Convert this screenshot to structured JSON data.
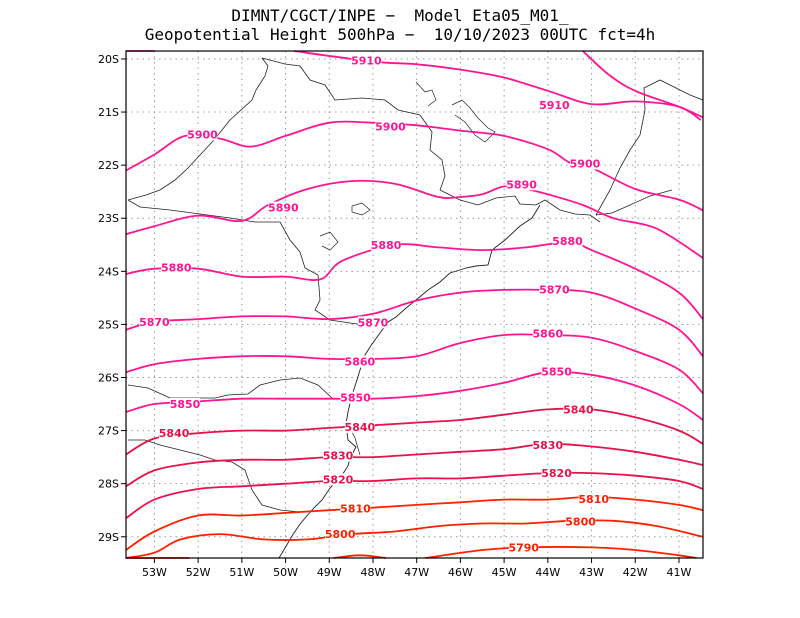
{
  "title": {
    "line1": "DIMNT/CGCT/INPE −  Model Eta05_M01_",
    "line2": "Geopotential Height 500hPa −  10/10/2023 00UTC fct=4h"
  },
  "chart_data": {
    "type": "contour",
    "variable": "Geopotential Height 500hPa",
    "x_ticks": [
      "53W",
      "52W",
      "51W",
      "50W",
      "49W",
      "48W",
      "47W",
      "46W",
      "45W",
      "44W",
      "43W",
      "42W",
      "41W"
    ],
    "y_ticks": [
      "20S",
      "21S",
      "22S",
      "23S",
      "24S",
      "25S",
      "26S",
      "27S",
      "28S",
      "29S"
    ],
    "xlim": [
      -53.65,
      -40.45
    ],
    "ylim": [
      -29.4,
      -19.85
    ],
    "grid": true,
    "contours": [
      {
        "level": 5910,
        "color": "#ff1493",
        "points": [
          [
            -49.8,
            -19.85
          ],
          [
            -48.0,
            -20.05
          ],
          [
            -47.0,
            -20.1
          ],
          [
            -46.0,
            -20.2
          ],
          [
            -45.0,
            -20.35
          ],
          [
            -44.0,
            -20.6
          ],
          [
            -43.0,
            -20.85
          ],
          [
            -42.0,
            -20.8
          ],
          [
            -41.0,
            -20.9
          ],
          [
            -40.5,
            -21.15
          ]
        ],
        "labels": [
          {
            "text": "5910",
            "x": -48.15,
            "y": -20.03
          },
          {
            "text": "5910",
            "x": -43.85,
            "y": -20.87
          }
        ]
      },
      {
        "level": 5910,
        "color": "#ff1493",
        "points": [
          [
            -53.65,
            -19.85
          ],
          [
            -53.0,
            -19.85
          ]
        ],
        "labels": []
      },
      {
        "level": 5910,
        "color": "#ff1493",
        "points": [
          [
            -43.2,
            -19.85
          ],
          [
            -42.6,
            -20.3
          ],
          [
            -42.0,
            -20.6
          ],
          [
            -41.0,
            -20.9
          ],
          [
            -40.45,
            -21.1
          ]
        ],
        "labels": []
      },
      {
        "level": 5900,
        "color": "#ff1493",
        "points": [
          [
            -53.65,
            -22.1
          ],
          [
            -53.0,
            -21.8
          ],
          [
            -52.3,
            -21.45
          ],
          [
            -51.5,
            -21.5
          ],
          [
            -50.8,
            -21.65
          ],
          [
            -50.0,
            -21.45
          ],
          [
            -49.0,
            -21.2
          ],
          [
            -48.0,
            -21.2
          ],
          [
            -47.0,
            -21.25
          ],
          [
            -46.0,
            -21.35
          ],
          [
            -45.0,
            -21.45
          ],
          [
            -44.0,
            -21.7
          ],
          [
            -43.5,
            -21.95
          ],
          [
            -43.0,
            -22.05
          ],
          [
            -42.0,
            -22.45
          ],
          [
            -41.0,
            -22.65
          ],
          [
            -40.45,
            -22.85
          ]
        ],
        "labels": [
          {
            "text": "5900",
            "x": -51.9,
            "y": -21.42
          },
          {
            "text": "5900",
            "x": -47.6,
            "y": -21.27
          },
          {
            "text": "5900",
            "x": -43.15,
            "y": -21.97
          }
        ]
      },
      {
        "level": 5890,
        "color": "#ff1493",
        "points": [
          [
            -53.65,
            -23.3
          ],
          [
            -53.0,
            -23.15
          ],
          [
            -52.0,
            -22.95
          ],
          [
            -51.0,
            -23.05
          ],
          [
            -50.4,
            -22.75
          ],
          [
            -49.5,
            -22.45
          ],
          [
            -48.5,
            -22.3
          ],
          [
            -47.5,
            -22.35
          ],
          [
            -46.5,
            -22.6
          ],
          [
            -46.0,
            -22.6
          ],
          [
            -45.5,
            -22.55
          ],
          [
            -45.0,
            -22.4
          ],
          [
            -44.5,
            -22.45
          ],
          [
            -44.0,
            -22.55
          ],
          [
            -43.2,
            -22.75
          ],
          [
            -42.5,
            -23.0
          ],
          [
            -41.5,
            -23.2
          ],
          [
            -40.45,
            -23.75
          ]
        ],
        "labels": [
          {
            "text": "5890",
            "x": -50.05,
            "y": -22.8
          },
          {
            "text": "5890",
            "x": -44.6,
            "y": -22.36
          }
        ]
      },
      {
        "level": 5880,
        "color": "#ff1493",
        "points": [
          [
            -53.65,
            -24.05
          ],
          [
            -53.0,
            -23.95
          ],
          [
            -52.0,
            -23.95
          ],
          [
            -51.0,
            -24.1
          ],
          [
            -50.0,
            -24.1
          ],
          [
            -49.2,
            -24.15
          ],
          [
            -48.7,
            -23.8
          ],
          [
            -47.5,
            -23.5
          ],
          [
            -46.5,
            -23.55
          ],
          [
            -45.5,
            -23.6
          ],
          [
            -44.5,
            -23.55
          ],
          [
            -43.5,
            -23.45
          ],
          [
            -43.0,
            -23.6
          ],
          [
            -42.0,
            -23.95
          ],
          [
            -41.0,
            -24.4
          ],
          [
            -40.45,
            -24.9
          ]
        ],
        "labels": [
          {
            "text": "5880",
            "x": -52.5,
            "y": -23.93
          },
          {
            "text": "5880",
            "x": -47.7,
            "y": -23.5
          },
          {
            "text": "5880",
            "x": -43.55,
            "y": -23.43
          }
        ]
      },
      {
        "level": 5870,
        "color": "#ff1493",
        "points": [
          [
            -53.65,
            -25.1
          ],
          [
            -53.0,
            -24.95
          ],
          [
            -52.0,
            -24.9
          ],
          [
            -51.0,
            -24.85
          ],
          [
            -50.0,
            -24.85
          ],
          [
            -49.0,
            -24.9
          ],
          [
            -48.0,
            -24.8
          ],
          [
            -47.0,
            -24.55
          ],
          [
            -46.0,
            -24.4
          ],
          [
            -45.0,
            -24.35
          ],
          [
            -44.0,
            -24.35
          ],
          [
            -43.0,
            -24.4
          ],
          [
            -42.0,
            -24.7
          ],
          [
            -41.0,
            -25.1
          ],
          [
            -40.45,
            -25.6
          ]
        ],
        "labels": [
          {
            "text": "5870",
            "x": -53.0,
            "y": -24.95
          },
          {
            "text": "5870",
            "x": -48.0,
            "y": -24.96
          },
          {
            "text": "5870",
            "x": -43.85,
            "y": -24.34
          }
        ]
      },
      {
        "level": 5860,
        "color": "#ff1493",
        "points": [
          [
            -53.65,
            -25.9
          ],
          [
            -53.0,
            -25.75
          ],
          [
            -52.0,
            -25.65
          ],
          [
            -51.0,
            -25.6
          ],
          [
            -50.0,
            -25.6
          ],
          [
            -49.0,
            -25.65
          ],
          [
            -48.0,
            -25.65
          ],
          [
            -47.0,
            -25.6
          ],
          [
            -46.0,
            -25.35
          ],
          [
            -45.0,
            -25.2
          ],
          [
            -44.0,
            -25.2
          ],
          [
            -43.0,
            -25.25
          ],
          [
            -42.0,
            -25.5
          ],
          [
            -41.0,
            -25.85
          ],
          [
            -40.45,
            -26.3
          ]
        ],
        "labels": [
          {
            "text": "5860",
            "x": -48.3,
            "y": -25.7
          },
          {
            "text": "5860",
            "x": -44.0,
            "y": -25.17
          }
        ]
      },
      {
        "level": 5850,
        "color": "#ff1493",
        "points": [
          [
            -53.65,
            -26.65
          ],
          [
            -53.0,
            -26.5
          ],
          [
            -52.0,
            -26.45
          ],
          [
            -51.0,
            -26.4
          ],
          [
            -50.0,
            -26.4
          ],
          [
            -49.0,
            -26.4
          ],
          [
            -48.0,
            -26.4
          ],
          [
            -47.0,
            -26.35
          ],
          [
            -46.0,
            -26.25
          ],
          [
            -45.0,
            -26.1
          ],
          [
            -44.0,
            -25.9
          ],
          [
            -43.0,
            -25.95
          ],
          [
            -42.0,
            -26.15
          ],
          [
            -41.0,
            -26.5
          ],
          [
            -40.45,
            -26.8
          ]
        ],
        "labels": [
          {
            "text": "5850",
            "x": -52.3,
            "y": -26.5
          },
          {
            "text": "5850",
            "x": -48.4,
            "y": -26.38
          },
          {
            "text": "5850",
            "x": -43.8,
            "y": -25.89
          }
        ]
      },
      {
        "level": 5840,
        "color": "#e8114a",
        "points": [
          [
            -53.65,
            -27.45
          ],
          [
            -53.0,
            -27.15
          ],
          [
            -52.0,
            -27.05
          ],
          [
            -51.0,
            -27.0
          ],
          [
            -50.0,
            -27.0
          ],
          [
            -49.0,
            -26.95
          ],
          [
            -48.0,
            -26.9
          ],
          [
            -47.0,
            -26.85
          ],
          [
            -46.0,
            -26.8
          ],
          [
            -45.0,
            -26.7
          ],
          [
            -44.0,
            -26.6
          ],
          [
            -43.0,
            -26.6
          ],
          [
            -42.0,
            -26.75
          ],
          [
            -41.0,
            -27.0
          ],
          [
            -40.45,
            -27.25
          ]
        ],
        "labels": [
          {
            "text": "5840",
            "x": -52.55,
            "y": -27.05
          },
          {
            "text": "5840",
            "x": -48.3,
            "y": -26.93
          },
          {
            "text": "5840",
            "x": -43.3,
            "y": -26.6
          }
        ]
      },
      {
        "level": 5830,
        "color": "#e8114a",
        "points": [
          [
            -53.65,
            -28.05
          ],
          [
            -53.0,
            -27.75
          ],
          [
            -52.0,
            -27.6
          ],
          [
            -51.0,
            -27.55
          ],
          [
            -50.0,
            -27.55
          ],
          [
            -49.0,
            -27.5
          ],
          [
            -48.0,
            -27.5
          ],
          [
            -47.0,
            -27.45
          ],
          [
            -46.0,
            -27.4
          ],
          [
            -45.0,
            -27.35
          ],
          [
            -44.0,
            -27.25
          ],
          [
            -43.0,
            -27.3
          ],
          [
            -42.0,
            -27.4
          ],
          [
            -41.0,
            -27.55
          ],
          [
            -40.45,
            -27.65
          ]
        ],
        "labels": [
          {
            "text": "5830",
            "x": -48.8,
            "y": -27.47
          },
          {
            "text": "5830",
            "x": -44.0,
            "y": -27.27
          }
        ]
      },
      {
        "level": 5820,
        "color": "#e8114a",
        "points": [
          [
            -53.65,
            -28.65
          ],
          [
            -53.0,
            -28.3
          ],
          [
            -52.0,
            -28.1
          ],
          [
            -51.0,
            -28.05
          ],
          [
            -50.0,
            -28.0
          ],
          [
            -49.0,
            -27.95
          ],
          [
            -48.0,
            -27.95
          ],
          [
            -47.0,
            -27.9
          ],
          [
            -46.0,
            -27.9
          ],
          [
            -45.0,
            -27.85
          ],
          [
            -44.0,
            -27.8
          ],
          [
            -43.0,
            -27.8
          ],
          [
            -42.0,
            -27.85
          ],
          [
            -41.0,
            -27.95
          ],
          [
            -40.45,
            -28.1
          ]
        ],
        "labels": [
          {
            "text": "5820",
            "x": -48.8,
            "y": -27.92
          },
          {
            "text": "5820",
            "x": -43.8,
            "y": -27.8
          }
        ]
      },
      {
        "level": 5810,
        "color": "#ff2000",
        "points": [
          [
            -53.65,
            -29.25
          ],
          [
            -53.0,
            -28.9
          ],
          [
            -52.0,
            -28.6
          ],
          [
            -51.0,
            -28.6
          ],
          [
            -50.0,
            -28.55
          ],
          [
            -49.0,
            -28.5
          ],
          [
            -48.0,
            -28.45
          ],
          [
            -47.0,
            -28.4
          ],
          [
            -46.0,
            -28.35
          ],
          [
            -45.0,
            -28.3
          ],
          [
            -44.0,
            -28.3
          ],
          [
            -43.0,
            -28.25
          ],
          [
            -42.0,
            -28.3
          ],
          [
            -41.0,
            -28.4
          ],
          [
            -40.45,
            -28.5
          ]
        ],
        "labels": [
          {
            "text": "5810",
            "x": -48.4,
            "y": -28.47
          },
          {
            "text": "5810",
            "x": -42.95,
            "y": -28.29
          }
        ]
      },
      {
        "level": 5800,
        "color": "#ff2000",
        "points": [
          [
            -53.65,
            -29.4
          ],
          [
            -53.0,
            -29.3
          ],
          [
            -52.4,
            -29.05
          ],
          [
            -51.5,
            -28.95
          ],
          [
            -50.5,
            -29.05
          ],
          [
            -49.5,
            -29.05
          ],
          [
            -48.5,
            -28.95
          ],
          [
            -47.5,
            -28.9
          ],
          [
            -46.5,
            -28.8
          ],
          [
            -45.5,
            -28.75
          ],
          [
            -44.5,
            -28.75
          ],
          [
            -43.5,
            -28.7
          ],
          [
            -42.5,
            -28.7
          ],
          [
            -41.5,
            -28.8
          ],
          [
            -40.45,
            -29.0
          ]
        ],
        "labels": [
          {
            "text": "5800",
            "x": -48.75,
            "y": -28.95
          },
          {
            "text": "5800",
            "x": -43.25,
            "y": -28.71
          }
        ]
      },
      {
        "level": 5790,
        "color": "#ff2000",
        "points": [
          [
            -53.65,
            -29.4
          ],
          [
            -53.2,
            -29.4
          ],
          [
            -52.2,
            -29.4
          ]
        ],
        "labels": []
      },
      {
        "level": 5790,
        "color": "#ff2000",
        "points": [
          [
            -48.9,
            -29.4
          ],
          [
            -48.3,
            -29.35
          ],
          [
            -47.7,
            -29.4
          ]
        ],
        "labels": []
      },
      {
        "level": 5790,
        "color": "#ff2000",
        "points": [
          [
            -46.8,
            -29.4
          ],
          [
            -45.5,
            -29.25
          ],
          [
            -44.5,
            -29.2
          ],
          [
            -43.0,
            -29.2
          ],
          [
            -42.0,
            -29.25
          ],
          [
            -41.0,
            -29.35
          ],
          [
            -40.6,
            -29.4
          ]
        ],
        "labels": [
          {
            "text": "5790",
            "x": -44.55,
            "y": -29.2
          }
        ]
      }
    ]
  }
}
